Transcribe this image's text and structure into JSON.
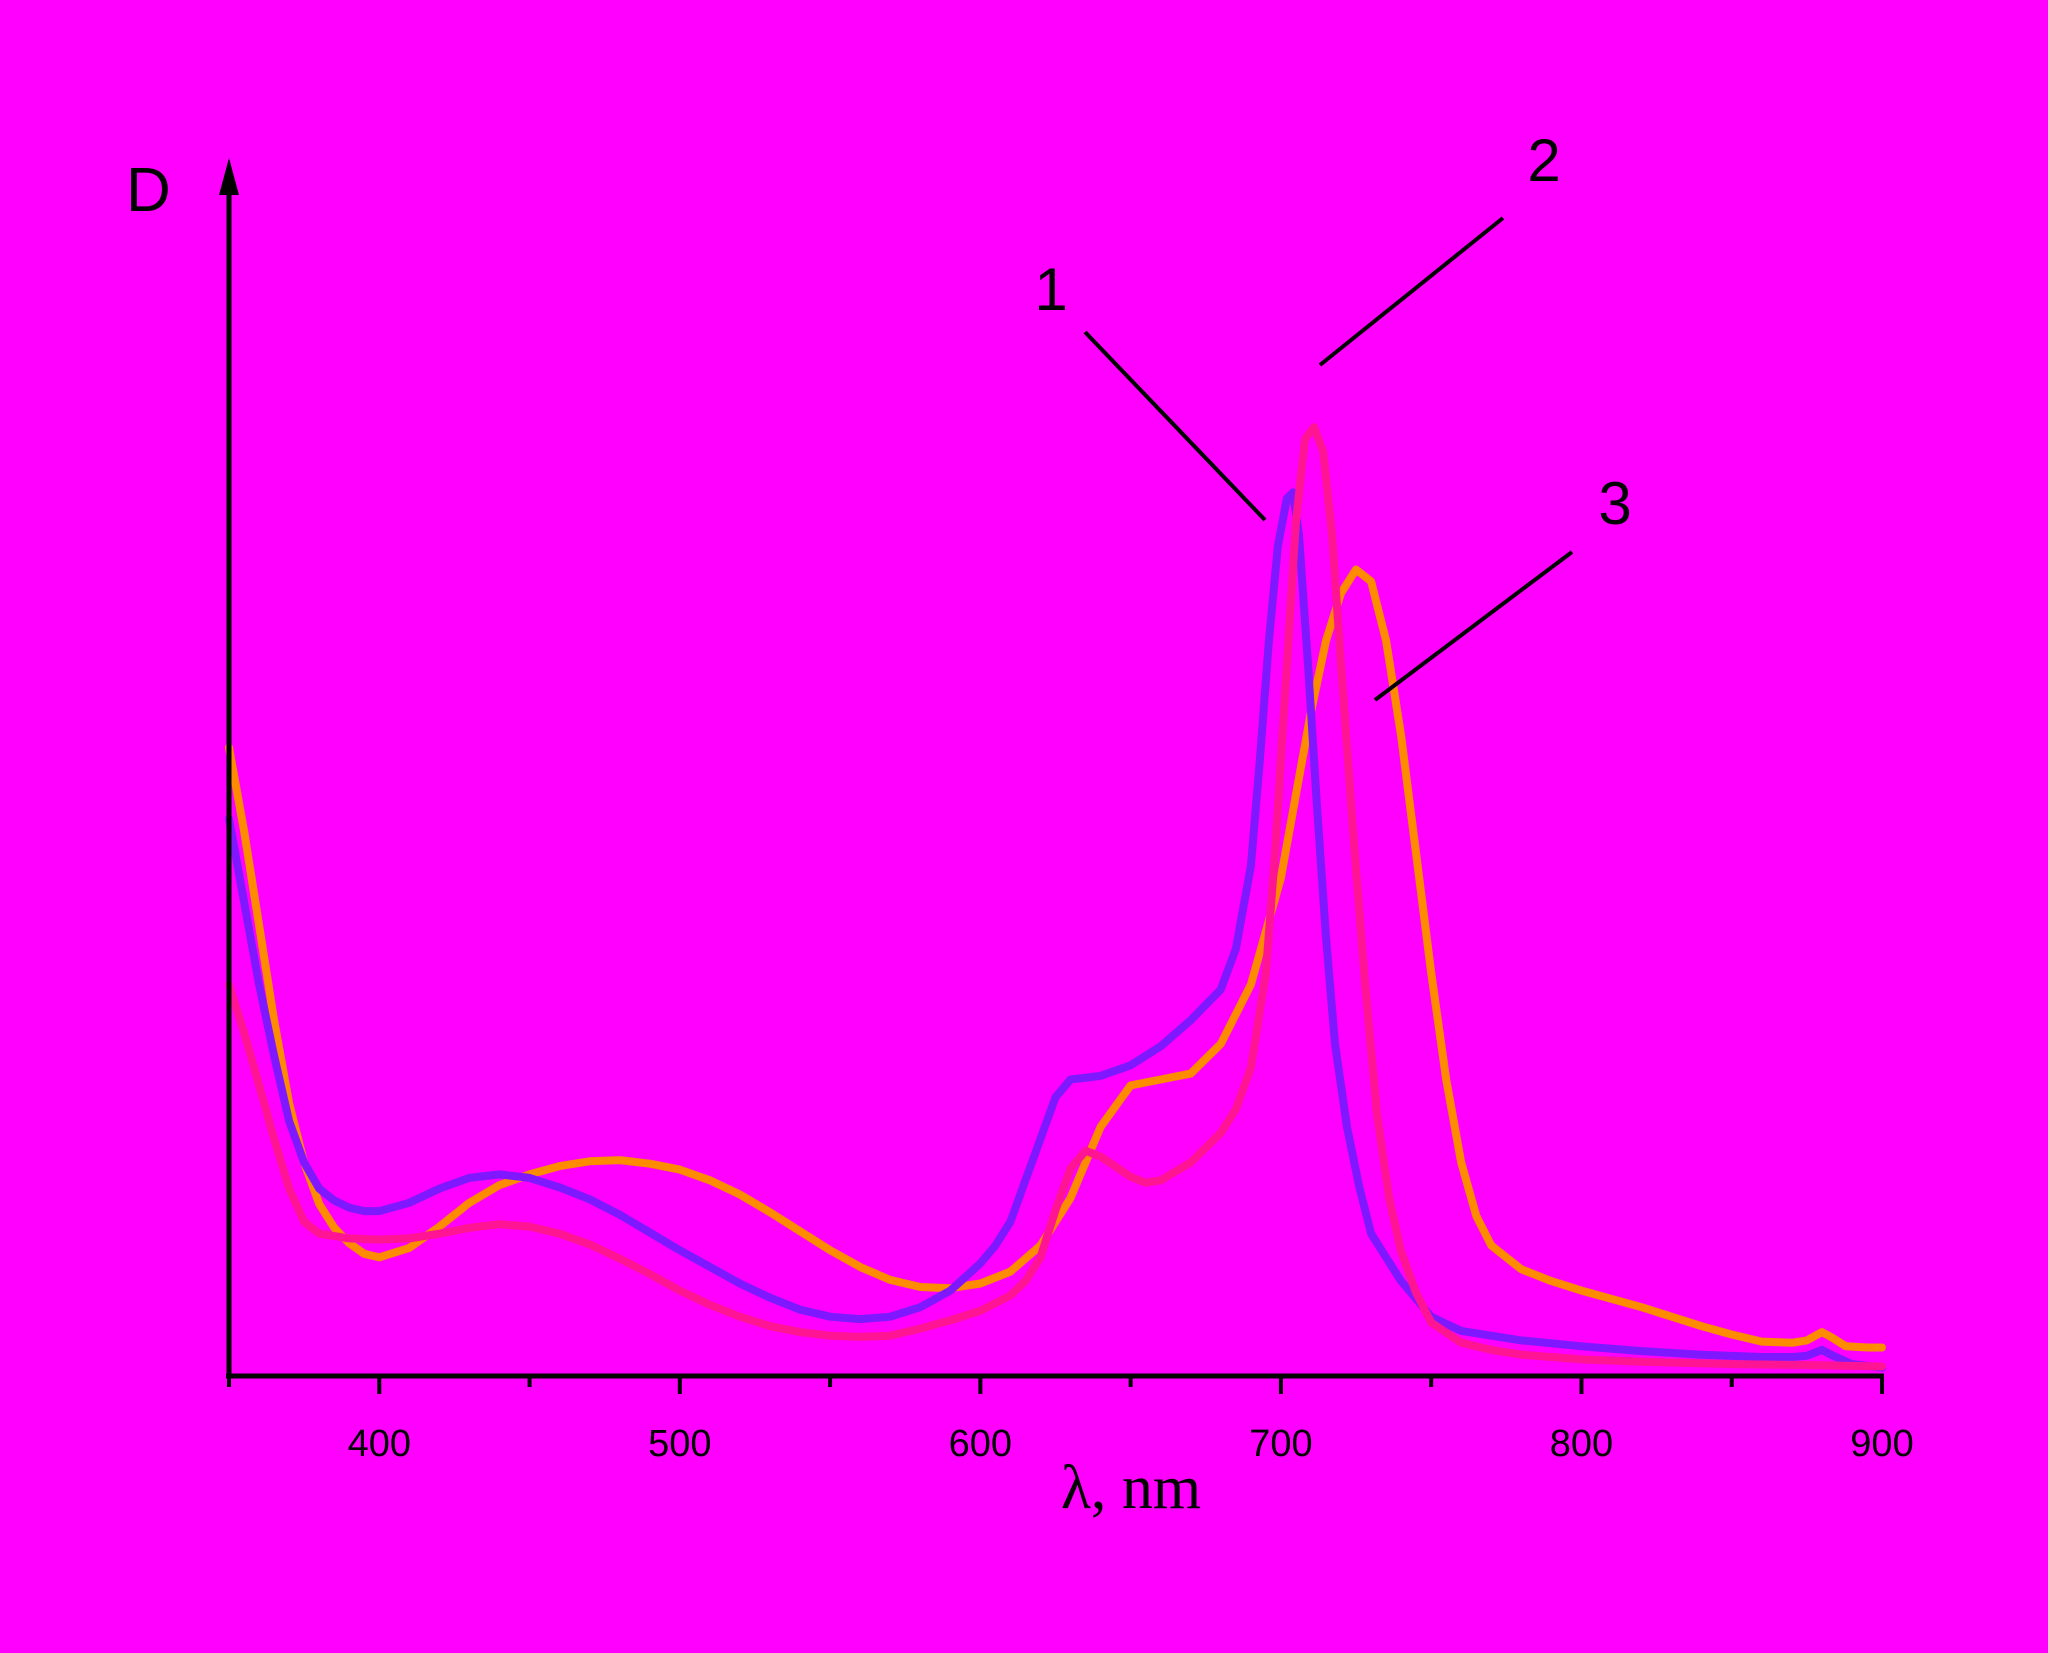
{
  "chart_data": {
    "type": "line",
    "title": "",
    "xlabel": "λ, nm",
    "ylabel": "D",
    "xlim": [
      350,
      900
    ],
    "ylim": [
      0,
      1
    ],
    "x_ticks": [
      400,
      500,
      600,
      700,
      800,
      900
    ],
    "x_tick_labels": [
      "400",
      "500",
      "600",
      "700",
      "800",
      "900"
    ],
    "x_minor_ticks": [
      350,
      450,
      550,
      650,
      750,
      850
    ],
    "grid": false,
    "legend": "none",
    "background_color": "#ff00ff",
    "series": [
      {
        "label": "1",
        "color": "#7f18ff",
        "points": [
          [
            350,
            0.47
          ],
          [
            355,
            0.4
          ],
          [
            360,
            0.33
          ],
          [
            365,
            0.27
          ],
          [
            370,
            0.215
          ],
          [
            375,
            0.18
          ],
          [
            380,
            0.158
          ],
          [
            385,
            0.148
          ],
          [
            390,
            0.142
          ],
          [
            395,
            0.139
          ],
          [
            400,
            0.139
          ],
          [
            410,
            0.146
          ],
          [
            420,
            0.158
          ],
          [
            430,
            0.167
          ],
          [
            440,
            0.17
          ],
          [
            450,
            0.167
          ],
          [
            460,
            0.159
          ],
          [
            470,
            0.149
          ],
          [
            480,
            0.136
          ],
          [
            490,
            0.121
          ],
          [
            500,
            0.106
          ],
          [
            510,
            0.092
          ],
          [
            520,
            0.078
          ],
          [
            530,
            0.066
          ],
          [
            540,
            0.056
          ],
          [
            550,
            0.05
          ],
          [
            560,
            0.048
          ],
          [
            570,
            0.05
          ],
          [
            580,
            0.058
          ],
          [
            590,
            0.072
          ],
          [
            600,
            0.095
          ],
          [
            605,
            0.11
          ],
          [
            610,
            0.13
          ],
          [
            615,
            0.165
          ],
          [
            620,
            0.2
          ],
          [
            625,
            0.235
          ],
          [
            630,
            0.25
          ],
          [
            640,
            0.253
          ],
          [
            650,
            0.262
          ],
          [
            660,
            0.278
          ],
          [
            670,
            0.3
          ],
          [
            680,
            0.326
          ],
          [
            685,
            0.36
          ],
          [
            690,
            0.43
          ],
          [
            693,
            0.52
          ],
          [
            696,
            0.62
          ],
          [
            699,
            0.7
          ],
          [
            702,
            0.74
          ],
          [
            704,
            0.745
          ],
          [
            706,
            0.71
          ],
          [
            709,
            0.6
          ],
          [
            712,
            0.48
          ],
          [
            715,
            0.37
          ],
          [
            718,
            0.28
          ],
          [
            722,
            0.21
          ],
          [
            726,
            0.16
          ],
          [
            730,
            0.12
          ],
          [
            740,
            0.08
          ],
          [
            750,
            0.05
          ],
          [
            760,
            0.038
          ],
          [
            780,
            0.03
          ],
          [
            800,
            0.025
          ],
          [
            820,
            0.021
          ],
          [
            840,
            0.018
          ],
          [
            860,
            0.016
          ],
          [
            870,
            0.016
          ],
          [
            875,
            0.017
          ],
          [
            880,
            0.022
          ],
          [
            883,
            0.018
          ],
          [
            890,
            0.01
          ],
          [
            900,
            0.007
          ]
        ]
      },
      {
        "label": "2",
        "color": "#ff1493",
        "points": [
          [
            350,
            0.33
          ],
          [
            355,
            0.29
          ],
          [
            360,
            0.245
          ],
          [
            365,
            0.2
          ],
          [
            370,
            0.158
          ],
          [
            375,
            0.13
          ],
          [
            380,
            0.12
          ],
          [
            390,
            0.116
          ],
          [
            400,
            0.115
          ],
          [
            410,
            0.116
          ],
          [
            420,
            0.12
          ],
          [
            430,
            0.125
          ],
          [
            440,
            0.128
          ],
          [
            450,
            0.126
          ],
          [
            460,
            0.12
          ],
          [
            470,
            0.111
          ],
          [
            480,
            0.099
          ],
          [
            490,
            0.086
          ],
          [
            500,
            0.072
          ],
          [
            510,
            0.06
          ],
          [
            520,
            0.05
          ],
          [
            530,
            0.042
          ],
          [
            540,
            0.037
          ],
          [
            550,
            0.034
          ],
          [
            560,
            0.033
          ],
          [
            570,
            0.034
          ],
          [
            580,
            0.04
          ],
          [
            590,
            0.047
          ],
          [
            600,
            0.055
          ],
          [
            610,
            0.068
          ],
          [
            615,
            0.08
          ],
          [
            620,
            0.1
          ],
          [
            625,
            0.14
          ],
          [
            630,
            0.175
          ],
          [
            635,
            0.19
          ],
          [
            640,
            0.185
          ],
          [
            650,
            0.168
          ],
          [
            655,
            0.163
          ],
          [
            660,
            0.165
          ],
          [
            670,
            0.18
          ],
          [
            680,
            0.205
          ],
          [
            685,
            0.225
          ],
          [
            690,
            0.26
          ],
          [
            695,
            0.34
          ],
          [
            698,
            0.44
          ],
          [
            702,
            0.6
          ],
          [
            705,
            0.72
          ],
          [
            708,
            0.79
          ],
          [
            711,
            0.8
          ],
          [
            714,
            0.78
          ],
          [
            717,
            0.71
          ],
          [
            720,
            0.6
          ],
          [
            724,
            0.46
          ],
          [
            728,
            0.33
          ],
          [
            732,
            0.22
          ],
          [
            736,
            0.15
          ],
          [
            740,
            0.105
          ],
          [
            745,
            0.07
          ],
          [
            750,
            0.045
          ],
          [
            760,
            0.028
          ],
          [
            770,
            0.022
          ],
          [
            780,
            0.018
          ],
          [
            800,
            0.014
          ],
          [
            820,
            0.012
          ],
          [
            850,
            0.01
          ],
          [
            880,
            0.009
          ],
          [
            900,
            0.008
          ]
        ]
      },
      {
        "label": "3",
        "color": "#ff8c00",
        "points": [
          [
            350,
            0.53
          ],
          [
            355,
            0.46
          ],
          [
            360,
            0.38
          ],
          [
            365,
            0.3
          ],
          [
            370,
            0.23
          ],
          [
            375,
            0.18
          ],
          [
            380,
            0.145
          ],
          [
            385,
            0.125
          ],
          [
            390,
            0.112
          ],
          [
            395,
            0.103
          ],
          [
            400,
            0.1
          ],
          [
            410,
            0.108
          ],
          [
            420,
            0.126
          ],
          [
            430,
            0.146
          ],
          [
            440,
            0.161
          ],
          [
            450,
            0.17
          ],
          [
            460,
            0.177
          ],
          [
            470,
            0.181
          ],
          [
            480,
            0.182
          ],
          [
            490,
            0.179
          ],
          [
            500,
            0.174
          ],
          [
            510,
            0.165
          ],
          [
            520,
            0.153
          ],
          [
            530,
            0.138
          ],
          [
            540,
            0.122
          ],
          [
            550,
            0.106
          ],
          [
            560,
            0.092
          ],
          [
            570,
            0.081
          ],
          [
            580,
            0.075
          ],
          [
            590,
            0.074
          ],
          [
            600,
            0.078
          ],
          [
            610,
            0.088
          ],
          [
            620,
            0.11
          ],
          [
            630,
            0.15
          ],
          [
            640,
            0.21
          ],
          [
            650,
            0.245
          ],
          [
            660,
            0.25
          ],
          [
            670,
            0.255
          ],
          [
            680,
            0.28
          ],
          [
            690,
            0.33
          ],
          [
            700,
            0.42
          ],
          [
            705,
            0.49
          ],
          [
            710,
            0.56
          ],
          [
            715,
            0.62
          ],
          [
            720,
            0.66
          ],
          [
            725,
            0.68
          ],
          [
            730,
            0.67
          ],
          [
            735,
            0.62
          ],
          [
            740,
            0.54
          ],
          [
            745,
            0.44
          ],
          [
            750,
            0.34
          ],
          [
            755,
            0.25
          ],
          [
            760,
            0.18
          ],
          [
            765,
            0.135
          ],
          [
            770,
            0.11
          ],
          [
            780,
            0.09
          ],
          [
            790,
            0.08
          ],
          [
            800,
            0.072
          ],
          [
            820,
            0.058
          ],
          [
            840,
            0.042
          ],
          [
            850,
            0.035
          ],
          [
            860,
            0.029
          ],
          [
            870,
            0.028
          ],
          [
            875,
            0.03
          ],
          [
            880,
            0.037
          ],
          [
            883,
            0.033
          ],
          [
            888,
            0.025
          ],
          [
            895,
            0.024
          ],
          [
            900,
            0.024
          ]
        ]
      }
    ],
    "annotations": [
      {
        "text": "1",
        "series": "1"
      },
      {
        "text": "2",
        "series": "2"
      },
      {
        "text": "3",
        "series": "3"
      }
    ]
  }
}
